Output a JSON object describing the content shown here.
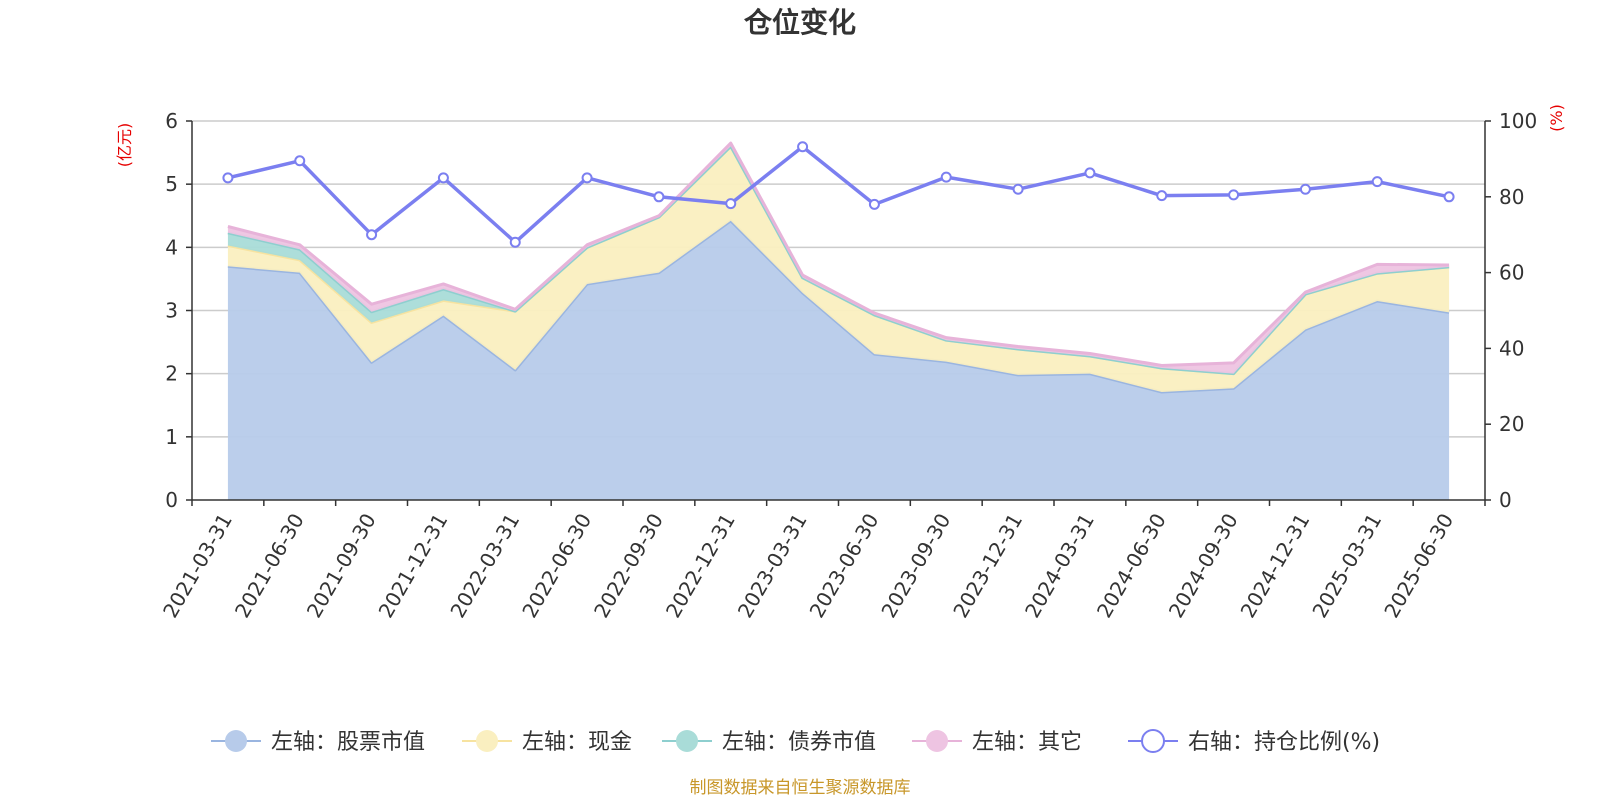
{
  "chart_data": {
    "type": "area",
    "title": "仓位变化",
    "left_axis": {
      "unit": "(亿元)",
      "range": [
        0,
        6
      ],
      "ticks": [
        0,
        1,
        2,
        3,
        4,
        5,
        6
      ]
    },
    "right_axis": {
      "unit": "(%)",
      "range": [
        0,
        100
      ],
      "ticks": [
        0,
        20,
        40,
        60,
        80,
        100
      ]
    },
    "categories": [
      "2021-03-31",
      "2021-06-30",
      "2021-09-30",
      "2021-12-31",
      "2022-03-31",
      "2022-06-30",
      "2022-09-30",
      "2022-12-31",
      "2023-03-31",
      "2023-06-30",
      "2023-09-30",
      "2023-12-31",
      "2024-03-31",
      "2024-06-30",
      "2024-09-30",
      "2024-12-31",
      "2025-03-31",
      "2025-06-30"
    ],
    "series": [
      {
        "name": "左轴：股票市值",
        "axis": "left",
        "kind": "stacked-area",
        "color": "#9ab5e0",
        "fill": "#b7cbea",
        "values": [
          3.7,
          3.6,
          2.18,
          2.92,
          2.06,
          3.42,
          3.6,
          4.42,
          3.28,
          2.31,
          2.19,
          1.98,
          2.0,
          1.71,
          1.77,
          2.7,
          3.15,
          2.97
        ]
      },
      {
        "name": "左轴：现金",
        "axis": "left",
        "kind": "stacked-area",
        "color": "#f7e3a0",
        "fill": "#faefc0",
        "values": [
          0.33,
          0.2,
          0.63,
          0.24,
          0.93,
          0.58,
          0.88,
          1.18,
          0.24,
          0.62,
          0.34,
          0.41,
          0.28,
          0.38,
          0.23,
          0.56,
          0.44,
          0.72
        ]
      },
      {
        "name": "左轴：债券市值",
        "axis": "left",
        "kind": "stacked-area",
        "color": "#8ecfcf",
        "fill": "#a9dcd8",
        "values": [
          0.2,
          0.17,
          0.17,
          0.18,
          0,
          0,
          0,
          0,
          0,
          0,
          0,
          0,
          0,
          0,
          0,
          0,
          0,
          0
        ]
      },
      {
        "name": "左轴：其它",
        "axis": "left",
        "kind": "stacked-area",
        "color": "#e7b3d9",
        "fill": "#eec4e2",
        "values": [
          0.1,
          0.07,
          0.12,
          0.08,
          0.03,
          0.04,
          0.02,
          0.05,
          0.04,
          0.03,
          0.04,
          0.04,
          0.04,
          0.04,
          0.17,
          0.03,
          0.14,
          0.03
        ]
      },
      {
        "name": "右轴：持仓比例(%)",
        "axis": "right",
        "kind": "line",
        "color": "#7b7ff0",
        "values": [
          85.0,
          89.5,
          70.0,
          85.0,
          68.0,
          85.0,
          80.0,
          78.2,
          93.2,
          78.0,
          85.2,
          82.0,
          86.3,
          80.3,
          80.5,
          82.0,
          84.0,
          80.0
        ]
      }
    ],
    "legend_position": "bottom",
    "grid": true,
    "source": "制图数据来自恒生聚源数据库"
  }
}
